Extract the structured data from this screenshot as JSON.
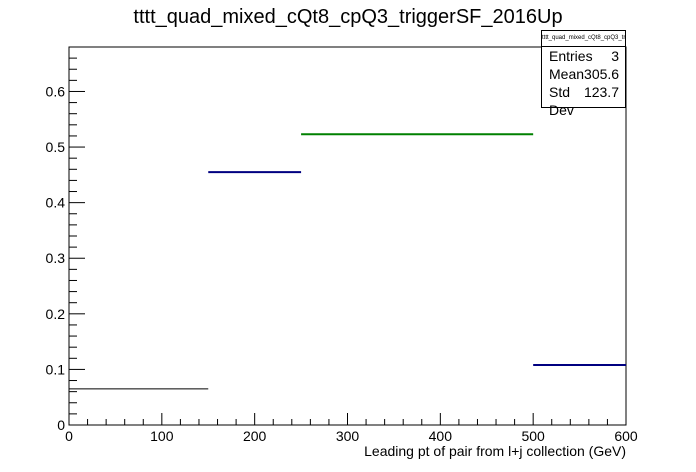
{
  "title": "tttt_quad_mixed_cQt8_cpQ3_triggerSF_2016Up",
  "stats_box": {
    "name": "tttt_quad_mixed_cQt8_cpQ3_triggerSF_2016Up",
    "rows": [
      {
        "label": "Entries",
        "value": "3"
      },
      {
        "label": "Mean",
        "value": "305.6"
      },
      {
        "label": "Std Dev",
        "value": "123.7"
      }
    ]
  },
  "chart_data": {
    "type": "bar",
    "style": "histogram-steps",
    "xlabel": "Leading pt of pair from l+j collection (GeV)",
    "ylabel": "",
    "xlim": [
      0,
      600
    ],
    "ylim": [
      0,
      0.68
    ],
    "x_ticks": [
      0,
      100,
      200,
      300,
      400,
      500,
      600
    ],
    "y_ticks": [
      0,
      0.1,
      0.2,
      0.3,
      0.4,
      0.5,
      0.6
    ],
    "x_tick_labels": [
      "0",
      "100",
      "200",
      "300",
      "400",
      "500",
      "600"
    ],
    "y_tick_labels": [
      "0",
      "0.1",
      "0.2",
      "0.3",
      "0.4",
      "0.5",
      "0.6"
    ],
    "bins": [
      {
        "x_low": 0,
        "x_high": 150,
        "value": 0.065,
        "color": "#000000"
      },
      {
        "x_low": 150,
        "x_high": 250,
        "value": 0.455,
        "color": "#000080"
      },
      {
        "x_low": 250,
        "x_high": 500,
        "value": 0.523,
        "color": "#008000"
      },
      {
        "x_low": 500,
        "x_high": 600,
        "value": 0.108,
        "color": "#000080"
      }
    ],
    "grid": false
  }
}
